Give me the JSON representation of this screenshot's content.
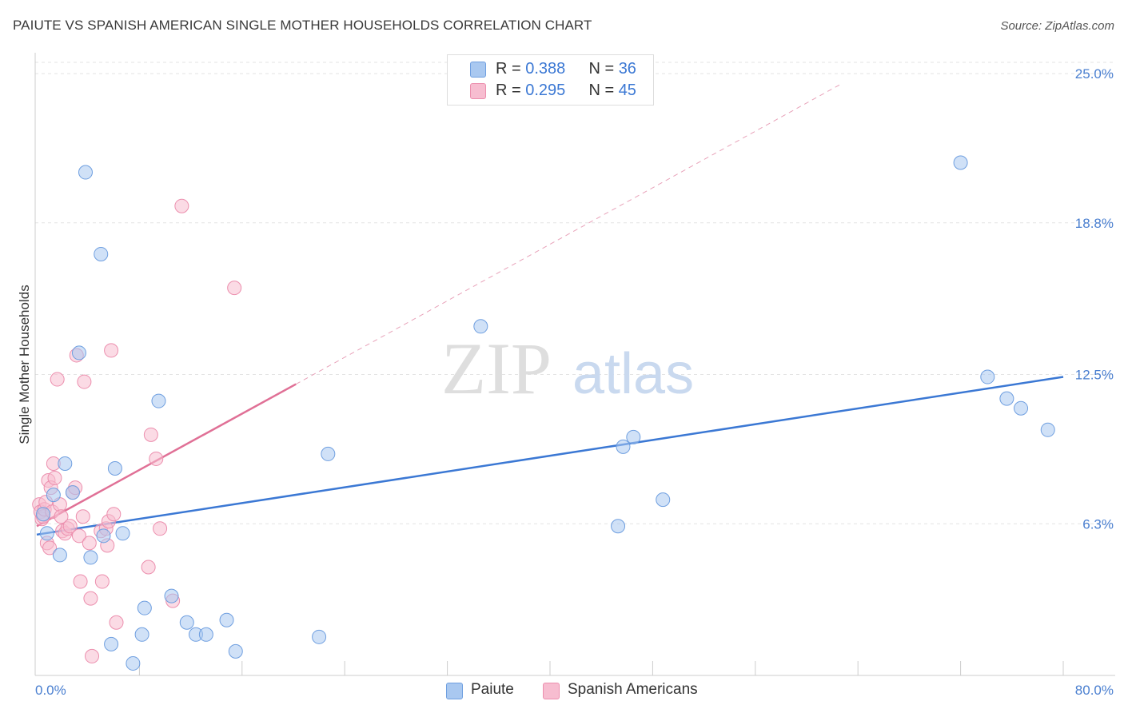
{
  "title": "PAIUTE VS SPANISH AMERICAN SINGLE MOTHER HOUSEHOLDS CORRELATION CHART",
  "source": "Source: ZipAtlas.com",
  "watermark": {
    "zip": "ZIP",
    "atlas": "atlas"
  },
  "legend": {
    "rows": [
      {
        "r_label": "R = ",
        "r_value": "0.388",
        "n_label": "N = ",
        "n_value": "36",
        "color": "#a9c8f0",
        "stroke": "#6f9fe0"
      },
      {
        "r_label": "R = ",
        "r_value": "0.295",
        "n_label": "N = ",
        "n_value": "45",
        "color": "#f7bdd0",
        "stroke": "#ec8fae"
      }
    ]
  },
  "bottom_legend": {
    "paiute": "Paiute",
    "spanish": "Spanish Americans"
  },
  "chart_data": {
    "type": "scatter",
    "title": "PAIUTE VS SPANISH AMERICAN SINGLE MOTHER HOUSEHOLDS CORRELATION CHART",
    "xlabel": "",
    "ylabel": "Single Mother Households",
    "xlim": [
      0,
      80
    ],
    "ylim": [
      0,
      25.6
    ],
    "x_tick_labels": [
      "0.0%",
      "80.0%"
    ],
    "y_ticks": [
      6.3,
      12.5,
      18.8,
      25.0
    ],
    "y_tick_labels": [
      "6.3%",
      "12.5%",
      "18.8%",
      "25.0%"
    ],
    "series": [
      {
        "name": "Paiute",
        "color": "#a9c8f0",
        "stroke": "#6f9fe0",
        "line_color": "#3b78d4",
        "trend": {
          "x": [
            0,
            80
          ],
          "y": [
            5.85,
            12.4
          ],
          "dashed_extension": false
        },
        "points": [
          [
            0.5,
            6.7
          ],
          [
            0.8,
            5.9
          ],
          [
            1.3,
            7.5
          ],
          [
            1.8,
            5.0
          ],
          [
            2.2,
            8.8
          ],
          [
            2.8,
            7.6
          ],
          [
            3.3,
            13.4
          ],
          [
            3.8,
            20.9
          ],
          [
            4.2,
            4.9
          ],
          [
            5.0,
            17.5
          ],
          [
            5.2,
            5.8
          ],
          [
            5.8,
            1.3
          ],
          [
            6.1,
            8.6
          ],
          [
            6.7,
            5.9
          ],
          [
            7.5,
            0.5
          ],
          [
            8.2,
            1.7
          ],
          [
            8.4,
            2.8
          ],
          [
            9.5,
            11.4
          ],
          [
            10.5,
            3.3
          ],
          [
            11.7,
            2.2
          ],
          [
            12.4,
            1.7
          ],
          [
            13.2,
            1.7
          ],
          [
            14.8,
            2.3
          ],
          [
            15.5,
            1.0
          ],
          [
            22.0,
            1.6
          ],
          [
            22.7,
            9.2
          ],
          [
            34.6,
            14.5
          ],
          [
            45.3,
            6.2
          ],
          [
            45.7,
            9.5
          ],
          [
            46.5,
            9.9
          ],
          [
            48.8,
            7.3
          ],
          [
            72.0,
            21.3
          ],
          [
            74.1,
            12.4
          ],
          [
            75.6,
            11.5
          ],
          [
            76.7,
            11.1
          ],
          [
            78.8,
            10.2
          ]
        ]
      },
      {
        "name": "Spanish Americans",
        "color": "#f7bdd0",
        "stroke": "#ec8fae",
        "line_color": "#e07096",
        "trend": {
          "x": [
            0,
            20.2
          ],
          "y": [
            6.2,
            12.1
          ],
          "dashed_extension": {
            "x": [
              20.2,
              62.8
            ],
            "y": [
              12.1,
              24.6
            ]
          }
        },
        "points": [
          [
            0.2,
            7.1
          ],
          [
            0.3,
            6.8
          ],
          [
            0.4,
            6.5
          ],
          [
            0.5,
            6.6
          ],
          [
            0.6,
            6.9
          ],
          [
            0.7,
            7.2
          ],
          [
            0.8,
            5.5
          ],
          [
            0.9,
            8.1
          ],
          [
            1.0,
            5.3
          ],
          [
            1.1,
            7.8
          ],
          [
            1.2,
            6.8
          ],
          [
            1.3,
            8.8
          ],
          [
            1.4,
            8.2
          ],
          [
            1.6,
            12.3
          ],
          [
            1.8,
            7.1
          ],
          [
            1.9,
            6.6
          ],
          [
            2.0,
            6.0
          ],
          [
            2.2,
            5.9
          ],
          [
            2.4,
            6.1
          ],
          [
            2.6,
            6.2
          ],
          [
            2.8,
            7.6
          ],
          [
            3.0,
            7.8
          ],
          [
            3.1,
            13.3
          ],
          [
            3.3,
            5.8
          ],
          [
            3.4,
            3.9
          ],
          [
            3.6,
            6.6
          ],
          [
            3.7,
            12.2
          ],
          [
            4.1,
            5.5
          ],
          [
            4.2,
            3.2
          ],
          [
            4.3,
            0.8
          ],
          [
            5.0,
            6.0
          ],
          [
            5.1,
            3.9
          ],
          [
            5.4,
            6.1
          ],
          [
            5.5,
            5.4
          ],
          [
            5.6,
            6.4
          ],
          [
            5.8,
            13.5
          ],
          [
            6.0,
            6.7
          ],
          [
            6.2,
            2.2
          ],
          [
            8.7,
            4.5
          ],
          [
            8.9,
            10.0
          ],
          [
            9.3,
            9.0
          ],
          [
            9.6,
            6.1
          ],
          [
            10.6,
            3.1
          ],
          [
            11.3,
            19.5
          ],
          [
            15.4,
            16.1
          ]
        ]
      }
    ]
  }
}
